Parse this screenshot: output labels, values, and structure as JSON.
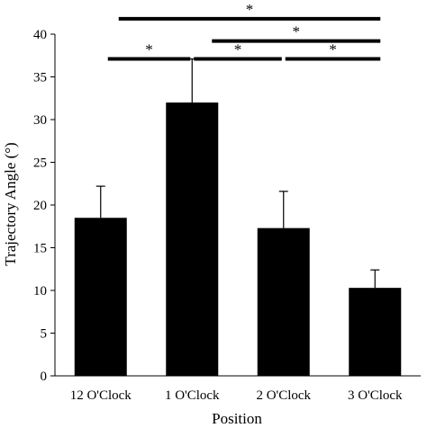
{
  "chart_data": {
    "type": "bar",
    "title": "",
    "xlabel": "Position",
    "ylabel": "Trajectory Angle (°)",
    "categories": [
      "12 O'Clock",
      "1 O'Clock",
      "2 O'Clock",
      "3 O'Clock"
    ],
    "values": [
      18.5,
      32.0,
      17.3,
      10.3
    ],
    "error_upper": [
      3.7,
      5.1,
      4.3,
      2.1
    ],
    "ylim": [
      0,
      40
    ],
    "yticks": [
      0,
      5,
      10,
      15,
      20,
      25,
      30,
      35,
      40
    ],
    "ytick_labels": [
      "0",
      "5",
      "10",
      "15",
      "20",
      "25",
      "30",
      "35",
      "40"
    ],
    "grid": false,
    "legend": "none",
    "bar_color": "#000000",
    "significance": [
      {
        "from": 0,
        "to": 3,
        "level": 41.8,
        "label": "*"
      },
      {
        "from": 1,
        "to": 3,
        "level": 39.2,
        "label": "*"
      },
      {
        "from": 0,
        "to": 1,
        "level": 37.1,
        "label": "*"
      },
      {
        "from": 1,
        "to": 2,
        "level": 37.1,
        "label": "*"
      },
      {
        "from": 2,
        "to": 3,
        "level": 37.1,
        "label": "*"
      }
    ]
  }
}
